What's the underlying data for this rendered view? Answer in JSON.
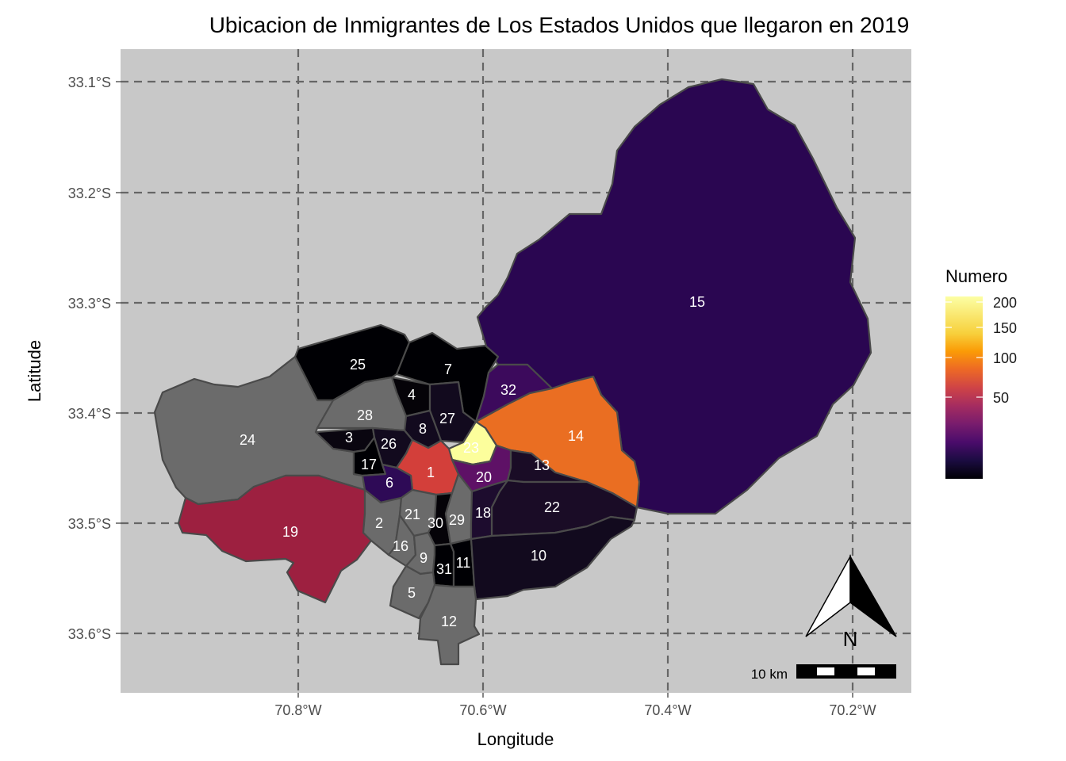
{
  "title": "Ubicacion de Inmigrantes de Los Estados Unidos que llegaron en 2019",
  "xlabel": "Longitude",
  "ylabel": "Latitude",
  "chart_data": {
    "type": "choropleth-map",
    "title": "Ubicacion de Inmigrantes de Los Estados Unidos que llegaron en 2019",
    "xlabel": "Longitude",
    "ylabel": "Latitude",
    "grid": true,
    "x_ticks": [
      {
        "value": -70.8,
        "label": "70.8°W"
      },
      {
        "value": -70.6,
        "label": "70.6°W"
      },
      {
        "value": -70.4,
        "label": "70.4°W"
      },
      {
        "value": -70.2,
        "label": "70.2°W"
      }
    ],
    "y_ticks": [
      {
        "value": -33.1,
        "label": "33.1°S"
      },
      {
        "value": -33.2,
        "label": "33.2°S"
      },
      {
        "value": -33.3,
        "label": "33.3°S"
      },
      {
        "value": -33.4,
        "label": "33.4°S"
      },
      {
        "value": -33.5,
        "label": "33.5°S"
      },
      {
        "value": -33.6,
        "label": "33.6°S"
      }
    ],
    "legend": {
      "title": "Numero",
      "placement": "right",
      "breaks": [
        {
          "value": 200,
          "label": "200"
        },
        {
          "value": 150,
          "label": "150"
        },
        {
          "value": 100,
          "label": "100"
        },
        {
          "value": 50,
          "label": "50"
        }
      ],
      "range": [
        0,
        215
      ],
      "palette": "inferno"
    },
    "regions": [
      {
        "id": "1",
        "value": 100,
        "color": "#d33f3a"
      },
      {
        "id": "2",
        "value": null,
        "color": "#6b6b6b"
      },
      {
        "id": "3",
        "value": 6,
        "color": "#0a0610"
      },
      {
        "id": "4",
        "value": 3,
        "color": "#050308"
      },
      {
        "id": "5",
        "value": null,
        "color": "#6b6b6b"
      },
      {
        "id": "6",
        "value": 25,
        "color": "#2e0a56"
      },
      {
        "id": "7",
        "value": 1,
        "color": "#000004"
      },
      {
        "id": "8",
        "value": 8,
        "color": "#120a1e"
      },
      {
        "id": "9",
        "value": null,
        "color": "#6b6b6b"
      },
      {
        "id": "10",
        "value": 8,
        "color": "#120a1e"
      },
      {
        "id": "11",
        "value": 1,
        "color": "#000004"
      },
      {
        "id": "12",
        "value": null,
        "color": "#6b6b6b"
      },
      {
        "id": "13",
        "value": 10,
        "color": "#1a0c26"
      },
      {
        "id": "14",
        "value": 130,
        "color": "#ea6e22"
      },
      {
        "id": "15",
        "value": 25,
        "color": "#2a0651"
      },
      {
        "id": "16",
        "value": null,
        "color": "#6b6b6b"
      },
      {
        "id": "17",
        "value": 1,
        "color": "#000004"
      },
      {
        "id": "18",
        "value": 12,
        "color": "#1d0c2e"
      },
      {
        "id": "19",
        "value": 60,
        "color": "#9d2040"
      },
      {
        "id": "20",
        "value": 40,
        "color": "#5e1166"
      },
      {
        "id": "21",
        "value": null,
        "color": "#6b6b6b"
      },
      {
        "id": "22",
        "value": 10,
        "color": "#1a0c26"
      },
      {
        "id": "23",
        "value": 210,
        "color": "#fcfe9c"
      },
      {
        "id": "24",
        "value": null,
        "color": "#6b6b6b"
      },
      {
        "id": "25",
        "value": 1,
        "color": "#000004"
      },
      {
        "id": "26",
        "value": 8,
        "color": "#120a1e"
      },
      {
        "id": "27",
        "value": 8,
        "color": "#120a1e"
      },
      {
        "id": "28",
        "value": null,
        "color": "#6b6b6b"
      },
      {
        "id": "29",
        "value": null,
        "color": "#6b6b6b"
      },
      {
        "id": "30",
        "value": 3,
        "color": "#050308"
      },
      {
        "id": "31",
        "value": 1,
        "color": "#000004"
      },
      {
        "id": "32",
        "value": 30,
        "color": "#3c0a5c"
      }
    ],
    "scale_bar": "10 km",
    "north_arrow": "N",
    "colors": {
      "panel_background": "#c8c8c8",
      "grid_line": "#666666",
      "border": "#4a4a4a",
      "na_fill": "#6b6b6b"
    }
  }
}
